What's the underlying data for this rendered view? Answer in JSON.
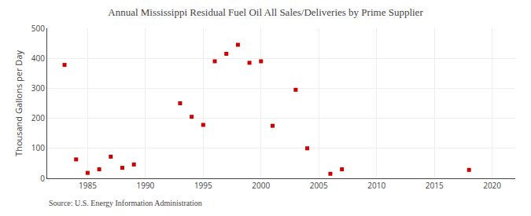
{
  "chart_data": {
    "type": "scatter",
    "title": "Annual Mississippi Residual Fuel Oil All Sales/Deliveries by Prime Supplier",
    "ylabel": "Thousand Gallons per Day",
    "annotations": [
      "Source: U.S. Energy Information Administration"
    ],
    "x": [
      1983,
      1984,
      1985,
      1986,
      1987,
      1988,
      1989,
      1993,
      1994,
      1995,
      1996,
      1997,
      1998,
      1999,
      2000,
      2001,
      2003,
      2004,
      2006,
      2007,
      2018
    ],
    "values": [
      378,
      63,
      18,
      30,
      72,
      35,
      46,
      250,
      205,
      178,
      390,
      415,
      445,
      385,
      390,
      175,
      295,
      100,
      15,
      30,
      28
    ],
    "color": "#cc0000",
    "marker": "square",
    "xlim": [
      1981.5,
      2022
    ],
    "ylim": [
      0,
      500
    ],
    "xticks": [
      1985,
      1990,
      1995,
      2000,
      2005,
      2010,
      2015,
      2020
    ],
    "yticks": [
      0,
      100,
      200,
      300,
      400,
      500
    ],
    "grid": true
  }
}
